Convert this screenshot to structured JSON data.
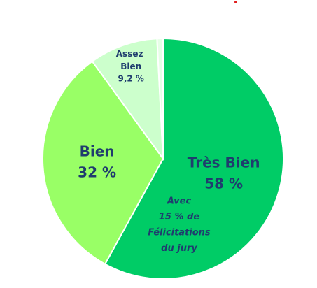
{
  "chart_data": {
    "type": "pie",
    "categories": [
      "Très Bien",
      "Bien",
      "Assez Bien",
      null
    ],
    "values": [
      58,
      32,
      9.2,
      0.8
    ],
    "value_labels": [
      "58 %",
      "32 %",
      "9,2 %",
      null
    ],
    "colors": [
      "#00cc66",
      "#99ff66",
      "#ccffcc",
      "#e6ffe6"
    ],
    "annotation": [
      "Avec",
      "15 % de",
      "Félicitations",
      "du jury"
    ]
  }
}
